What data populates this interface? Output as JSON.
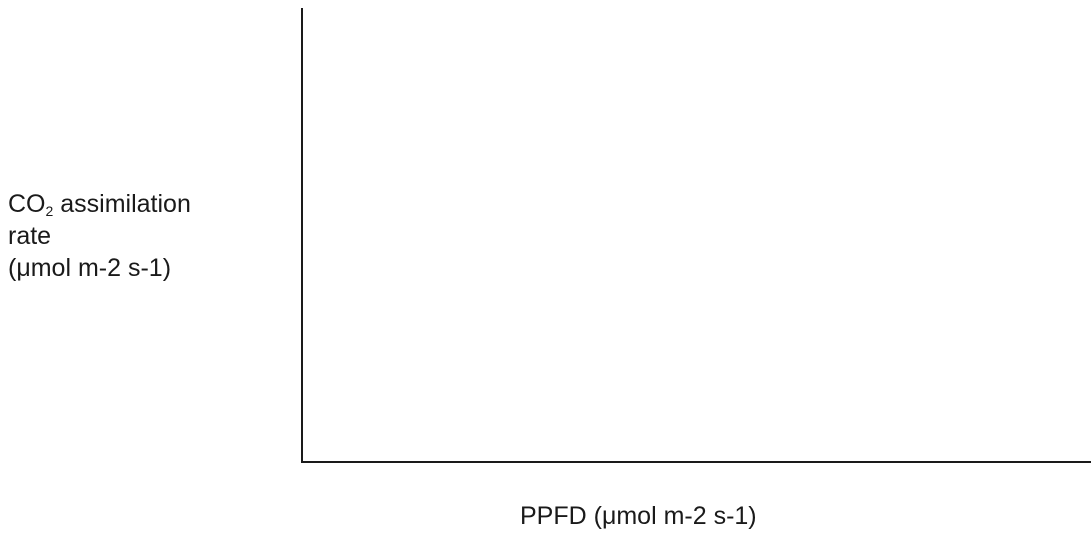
{
  "chart_data": {
    "type": "line",
    "title": "",
    "xlabel": "PPFD (μmol m-2 s-1)",
    "ylabel": {
      "main": "CO",
      "subscript": "2",
      "suffix": " assimilation",
      "line2": "rate",
      "line3": "(μmol m-2 s-1)"
    },
    "series": [],
    "grid": false,
    "ticks": false
  }
}
